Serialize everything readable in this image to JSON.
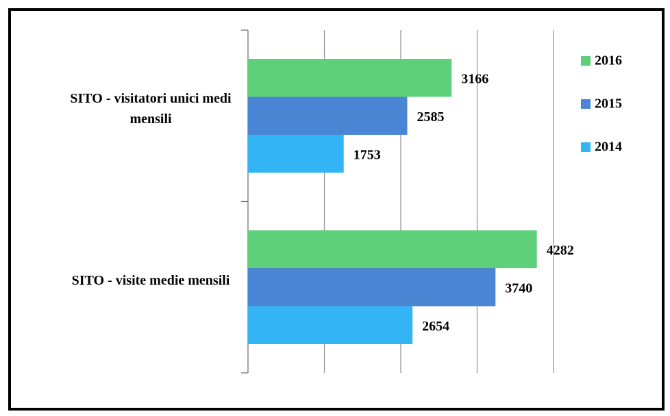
{
  "chart_data": {
    "type": "bar",
    "orientation": "horizontal",
    "categories": [
      "SITO - visitatori unici medi mensili",
      "SITO - visite medie mensili"
    ],
    "series": [
      {
        "name": "2016",
        "color": "#5ed07a",
        "values": [
          3166,
          4282
        ]
      },
      {
        "name": "2015",
        "color": "#4a86d4",
        "values": [
          2585,
          3740
        ]
      },
      {
        "name": "2014",
        "color": "#33b5f5",
        "values": [
          1753,
          2654
        ]
      }
    ],
    "xlim": [
      500,
      4500
    ],
    "xticks": [
      500,
      1500,
      2500,
      3500,
      4500
    ],
    "grid": true,
    "legend": "right"
  }
}
